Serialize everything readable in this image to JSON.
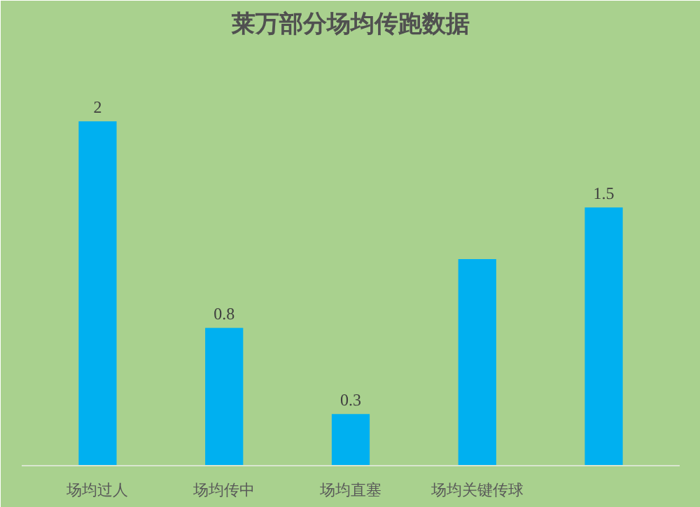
{
  "chart_data": {
    "type": "bar",
    "title": "莱万部分场均传跑数据",
    "categories": [
      "场均过人",
      "场均传中",
      "场均直塞",
      "场均关键传球",
      null
    ],
    "values": [
      2,
      0.8,
      0.3,
      1.2,
      1.5
    ],
    "value_labels": [
      "2",
      "0.8",
      "0.3",
      null,
      "1.5"
    ],
    "color": "#00b0f0"
  }
}
